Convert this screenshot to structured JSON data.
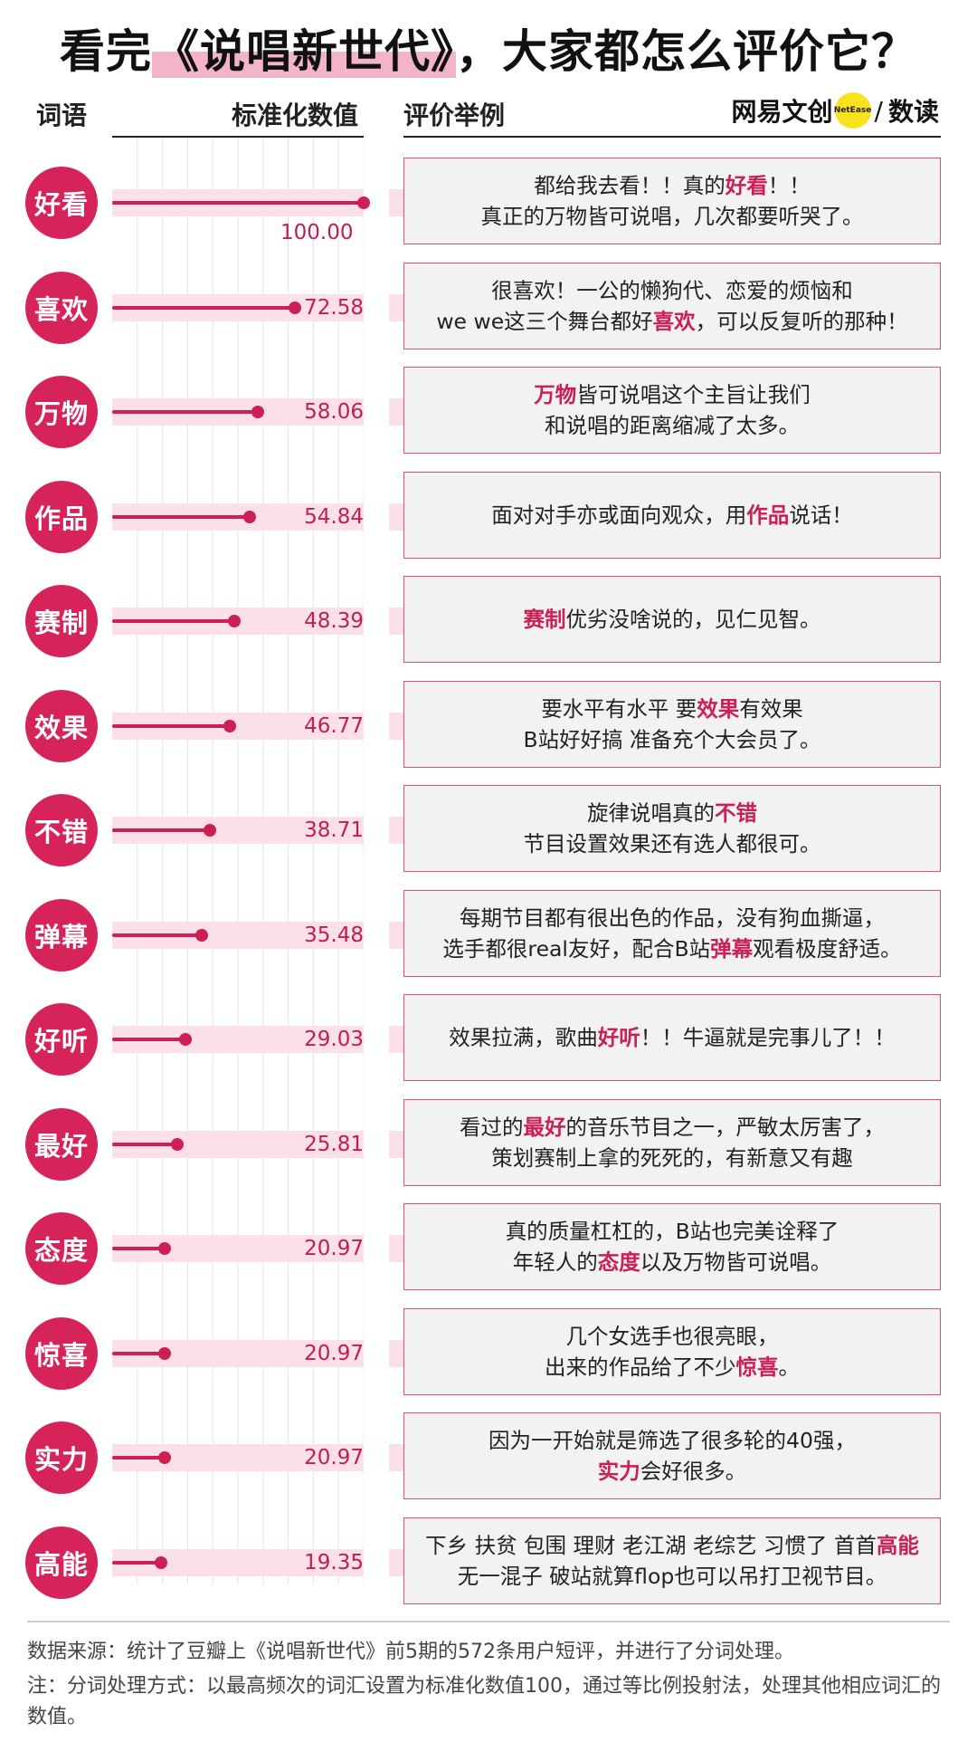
{
  "title": {
    "pre": "看完",
    "highlight": "《说唱新世代》",
    "post": "，大家都怎么评价它？"
  },
  "headers": {
    "word": "词语",
    "value": "标准化数值",
    "review": "评价举例"
  },
  "logo": {
    "brand": "网易文创",
    "badge": "NetEase",
    "slash": "/",
    "section": "数读"
  },
  "chart_data": {
    "type": "bar",
    "orientation": "horizontal",
    "xlim": [
      0,
      100
    ],
    "ylabel": "词语",
    "xlabel": "标准化数值",
    "categories": [
      "好看",
      "喜欢",
      "万物",
      "作品",
      "赛制",
      "效果",
      "不错",
      "弹幕",
      "好听",
      "最好",
      "态度",
      "惊喜",
      "实力",
      "高能"
    ],
    "values": [
      100.0,
      72.58,
      58.06,
      54.84,
      48.39,
      46.77,
      38.71,
      35.48,
      29.03,
      25.81,
      20.97,
      20.97,
      20.97,
      19.35
    ],
    "value_labels": [
      "100.00",
      "72.58",
      "58.06",
      "54.84",
      "48.39",
      "46.77",
      "38.71",
      "35.48",
      "29.03",
      "25.81",
      "20.97",
      "20.97",
      "20.97",
      "19.35"
    ],
    "grid": true,
    "color": "#cc1f54"
  },
  "reviews": [
    {
      "lines": [
        [
          {
            "t": "都给我去看！！真的"
          },
          {
            "t": "好看",
            "k": 1
          },
          {
            "t": "！！"
          }
        ],
        [
          {
            "t": "真正的万物皆可说唱，几次都要听哭了。"
          }
        ]
      ]
    },
    {
      "lines": [
        [
          {
            "t": "很喜欢！一公的懒狗代、恋爱的烦恼和"
          }
        ],
        [
          {
            "t": "we we这三个舞台都好"
          },
          {
            "t": "喜欢",
            "k": 1
          },
          {
            "t": "，可以反复听的那种！"
          }
        ]
      ]
    },
    {
      "lines": [
        [
          {
            "t": "万物",
            "k": 1
          },
          {
            "t": "皆可说唱这个主旨让我们"
          }
        ],
        [
          {
            "t": "和说唱的距离缩减了太多。"
          }
        ]
      ]
    },
    {
      "lines": [
        [
          {
            "t": "面对对手亦或面向观众，用"
          },
          {
            "t": "作品",
            "k": 1
          },
          {
            "t": "说话！"
          }
        ]
      ]
    },
    {
      "lines": [
        [
          {
            "t": "赛制",
            "k": 1
          },
          {
            "t": "优劣没啥说的，见仁见智。"
          }
        ]
      ]
    },
    {
      "lines": [
        [
          {
            "t": "要水平有水平 要"
          },
          {
            "t": "效果",
            "k": 1
          },
          {
            "t": "有效果"
          }
        ],
        [
          {
            "t": "B站好好搞 准备充个大会员了。"
          }
        ]
      ]
    },
    {
      "lines": [
        [
          {
            "t": "旋律说唱真的"
          },
          {
            "t": "不错",
            "k": 1
          }
        ],
        [
          {
            "t": "节目设置效果还有选人都很可。"
          }
        ]
      ]
    },
    {
      "lines": [
        [
          {
            "t": "每期节目都有很出色的作品，没有狗血撕逼，"
          }
        ],
        [
          {
            "t": "选手都很real友好，配合B站"
          },
          {
            "t": "弹幕",
            "k": 1
          },
          {
            "t": "观看极度舒适。"
          }
        ]
      ]
    },
    {
      "lines": [
        [
          {
            "t": "效果拉满，歌曲"
          },
          {
            "t": "好听",
            "k": 1
          },
          {
            "t": "！！牛逼就是完事儿了！！"
          }
        ]
      ]
    },
    {
      "lines": [
        [
          {
            "t": "看过的"
          },
          {
            "t": "最好",
            "k": 1
          },
          {
            "t": "的音乐节目之一，严敏太厉害了，"
          }
        ],
        [
          {
            "t": "策划赛制上拿的死死的，有新意又有趣"
          }
        ]
      ]
    },
    {
      "lines": [
        [
          {
            "t": "真的质量杠杠的，B站也完美诠释了"
          }
        ],
        [
          {
            "t": "年轻人的"
          },
          {
            "t": "态度",
            "k": 1
          },
          {
            "t": "以及万物皆可说唱。"
          }
        ]
      ]
    },
    {
      "lines": [
        [
          {
            "t": "几个女选手也很亮眼，"
          }
        ],
        [
          {
            "t": "出来的作品给了不少"
          },
          {
            "t": "惊喜",
            "k": 1
          },
          {
            "t": "。"
          }
        ]
      ]
    },
    {
      "lines": [
        [
          {
            "t": "因为一开始就是筛选了很多轮的40强，"
          }
        ],
        [
          {
            "t": "实力",
            "k": 1
          },
          {
            "t": "会好很多。"
          }
        ]
      ]
    },
    {
      "lines": [
        [
          {
            "t": "下乡 扶贫 包围 理财 老江湖 老综艺 习惯了 首首"
          },
          {
            "t": "高能",
            "k": 1
          }
        ],
        [
          {
            "t": "无一混子 破站就算flop也可以吊打卫视节目。"
          }
        ]
      ]
    }
  ],
  "footer": {
    "source": "数据来源：统计了豆瓣上《说唱新世代》前5期的572条用户短评，并进行了分词处理。",
    "note": "注：分词处理方式：以最高频次的词汇设置为标准化数值100，通过等比例投射法，处理其他相应词汇的数值。"
  }
}
